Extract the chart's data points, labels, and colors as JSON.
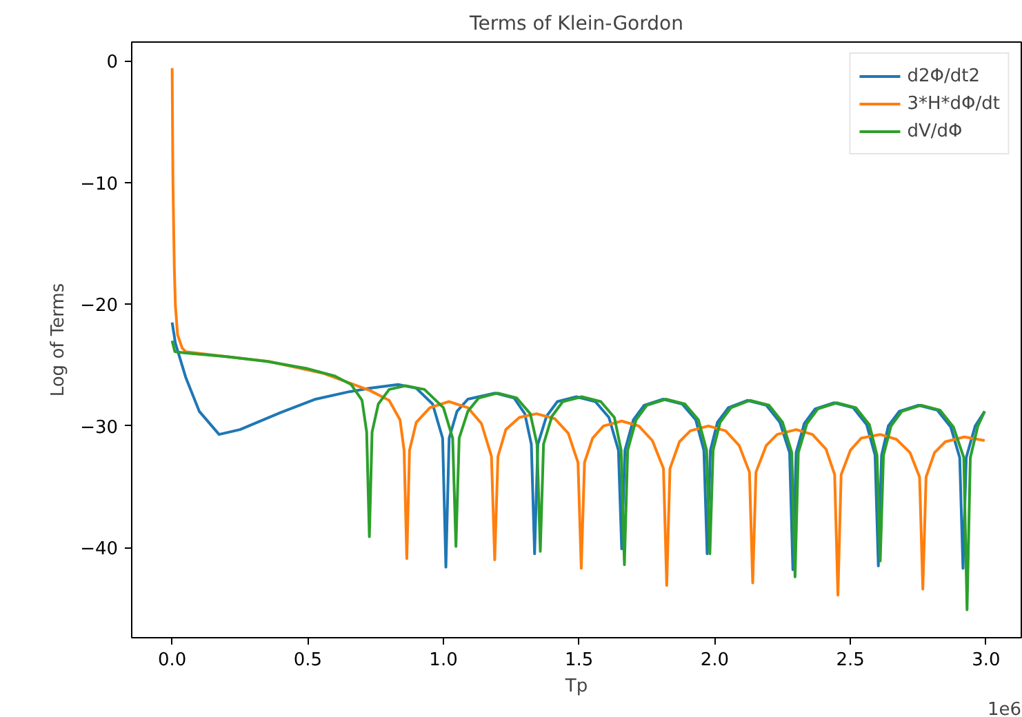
{
  "chart_data": {
    "type": "line",
    "title": "Terms of Klein-Gordon",
    "xlabel": "Tp",
    "ylabel": "Log of Terms",
    "annotations": [
      "1e6"
    ],
    "xlim": [
      -0.149,
      3.13
    ],
    "ylim": [
      -47.4,
      1.54
    ],
    "xticks": [
      {
        "value": 0,
        "label": "0.0"
      },
      0.5,
      {
        "value": 1,
        "label": "1.0"
      },
      1.5,
      {
        "value": 2,
        "label": "2.0"
      },
      2.5,
      {
        "value": 3,
        "label": "3.0"
      }
    ],
    "yticks": [
      0,
      {
        "value": -10,
        "label": "−10"
      },
      {
        "value": -20,
        "label": "−20"
      },
      {
        "value": -30,
        "label": "−30"
      },
      {
        "value": -40,
        "label": "−40"
      }
    ],
    "grid": false,
    "legend": "top right",
    "marker": "none",
    "line_style": "solid",
    "series": [
      {
        "name": "d2Φ/dt2",
        "color": "#1f77b4",
        "x": [
          0.0,
          0.012,
          0.05,
          0.1,
          0.173,
          0.25,
          0.4,
          0.529,
          0.65,
          0.73,
          0.833,
          0.9,
          0.96,
          0.997,
          1.009,
          1.021,
          1.05,
          1.09,
          1.19,
          1.26,
          1.3,
          1.324,
          1.336,
          1.348,
          1.38,
          1.42,
          1.49,
          1.56,
          1.61,
          1.645,
          1.657,
          1.669,
          1.7,
          1.74,
          1.81,
          1.88,
          1.93,
          1.96,
          1.972,
          1.984,
          2.01,
          2.05,
          2.12,
          2.19,
          2.24,
          2.276,
          2.288,
          2.3,
          2.33,
          2.37,
          2.44,
          2.51,
          2.56,
          2.591,
          2.603,
          2.615,
          2.64,
          2.68,
          2.75,
          2.82,
          2.87,
          2.903,
          2.915,
          2.927,
          2.96,
          2.995
        ],
        "values": [
          -21.5,
          -23.2,
          -26,
          -28.8,
          -30.7,
          -30.3,
          -28.9,
          -27.8,
          -27.2,
          -26.9,
          -26.6,
          -26.9,
          -28.2,
          -31,
          -41.6,
          -31,
          -28.8,
          -27.8,
          -27.3,
          -27.7,
          -29,
          -31.5,
          -40.5,
          -31.5,
          -29.2,
          -28,
          -27.6,
          -28,
          -29.3,
          -32,
          -40.1,
          -32,
          -29.5,
          -28.3,
          -27.8,
          -28.2,
          -29.5,
          -32,
          -40.5,
          -32,
          -29.7,
          -28.5,
          -27.9,
          -28.3,
          -29.7,
          -32.2,
          -41.8,
          -32.2,
          -29.8,
          -28.6,
          -28.1,
          -28.5,
          -29.9,
          -32.4,
          -41.5,
          -32.4,
          -30,
          -28.8,
          -28.3,
          -28.7,
          -30.1,
          -32.6,
          -41.7,
          -32.6,
          -30,
          -28.8
        ]
      },
      {
        "name": "3*H*dΦ/dt",
        "color": "#ff7f0e",
        "x": [
          0.0,
          0.003,
          0.008,
          0.012,
          0.02,
          0.037,
          0.05,
          0.2,
          0.356,
          0.56,
          0.73,
          0.8,
          0.84,
          0.855,
          0.865,
          0.875,
          0.9,
          0.95,
          1.02,
          1.09,
          1.14,
          1.177,
          1.189,
          1.201,
          1.23,
          1.28,
          1.343,
          1.41,
          1.46,
          1.496,
          1.508,
          1.52,
          1.55,
          1.59,
          1.657,
          1.72,
          1.77,
          1.811,
          1.823,
          1.835,
          1.87,
          1.91,
          1.977,
          2.04,
          2.09,
          2.128,
          2.14,
          2.152,
          2.19,
          2.23,
          2.3,
          2.36,
          2.41,
          2.442,
          2.454,
          2.466,
          2.5,
          2.54,
          2.61,
          2.67,
          2.72,
          2.755,
          2.767,
          2.779,
          2.81,
          2.85,
          2.92,
          2.995
        ],
        "values": [
          -0.6,
          -10,
          -17,
          -20.1,
          -22.5,
          -23.6,
          -23.9,
          -24.3,
          -24.7,
          -25.7,
          -27.1,
          -27.9,
          -29.5,
          -32,
          -40.9,
          -32,
          -29.7,
          -28.5,
          -28.0,
          -28.5,
          -29.8,
          -32.5,
          -41.0,
          -32.5,
          -30.3,
          -29.3,
          -29.0,
          -29.4,
          -30.6,
          -33,
          -41.7,
          -33,
          -31,
          -30,
          -29.6,
          -30,
          -31.2,
          -33.5,
          -43.1,
          -33.5,
          -31.3,
          -30.4,
          -30.0,
          -30.4,
          -31.6,
          -33.8,
          -42.9,
          -33.8,
          -31.6,
          -30.7,
          -30.3,
          -30.7,
          -31.9,
          -34,
          -43.9,
          -34,
          -32,
          -31,
          -30.7,
          -31.1,
          -32.2,
          -34.2,
          -43.4,
          -34.2,
          -32.2,
          -31.3,
          -30.9,
          -31.2
        ]
      },
      {
        "name": "dV/dΦ",
        "color": "#2ca02c",
        "x": [
          0.0,
          0.01,
          0.05,
          0.2,
          0.35,
          0.5,
          0.6,
          0.66,
          0.7,
          0.717,
          0.727,
          0.737,
          0.76,
          0.8,
          0.86,
          0.93,
          1.0,
          1.034,
          1.046,
          1.058,
          1.09,
          1.13,
          1.2,
          1.27,
          1.32,
          1.345,
          1.357,
          1.369,
          1.4,
          1.44,
          1.51,
          1.58,
          1.63,
          1.655,
          1.667,
          1.679,
          1.71,
          1.75,
          1.82,
          1.89,
          1.94,
          1.97,
          1.982,
          1.994,
          2.02,
          2.06,
          2.13,
          2.2,
          2.25,
          2.284,
          2.296,
          2.308,
          2.34,
          2.38,
          2.45,
          2.52,
          2.57,
          2.598,
          2.61,
          2.622,
          2.65,
          2.69,
          2.76,
          2.83,
          2.88,
          2.918,
          2.93,
          2.942,
          2.97,
          2.995
        ],
        "values": [
          -23.0,
          -23.9,
          -24.0,
          -24.3,
          -24.7,
          -25.3,
          -25.9,
          -26.6,
          -27.9,
          -30.5,
          -39.1,
          -30.5,
          -28.2,
          -27.0,
          -26.7,
          -27.0,
          -28.5,
          -31,
          -39.9,
          -31,
          -28.8,
          -27.7,
          -27.3,
          -27.7,
          -29,
          -31.5,
          -40.3,
          -31.5,
          -29.2,
          -28,
          -27.6,
          -28,
          -29.3,
          -32,
          -41.4,
          -32,
          -29.5,
          -28.3,
          -27.8,
          -28.2,
          -29.5,
          -32,
          -40.5,
          -32,
          -29.7,
          -28.5,
          -27.9,
          -28.3,
          -29.7,
          -32.2,
          -42.4,
          -32.2,
          -29.8,
          -28.6,
          -28.1,
          -28.5,
          -29.9,
          -32.4,
          -41.1,
          -32.4,
          -30,
          -28.8,
          -28.3,
          -28.7,
          -30.1,
          -32.6,
          -45.1,
          -32.6,
          -30,
          -28.8
        ]
      }
    ]
  }
}
